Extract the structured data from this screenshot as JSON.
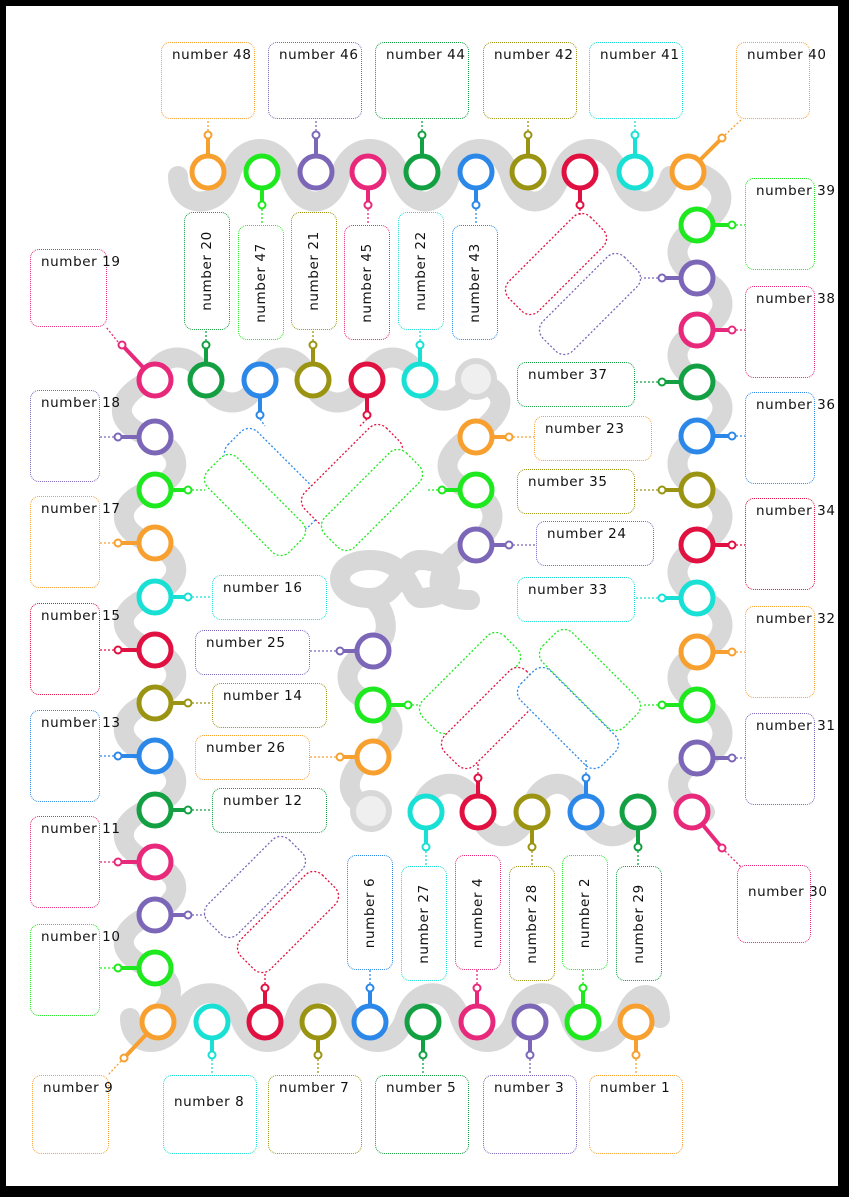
{
  "colors": {
    "orange": "#f7a030",
    "green": "#1ee81e",
    "purple": "#7b66b8",
    "pink": "#e8287a",
    "dkgreen": "#12a042",
    "blue": "#2c88e8",
    "olive": "#9a9412",
    "red": "#e01040",
    "cyan": "#18e0d4",
    "track": "#d8d8d8"
  },
  "labels": {
    "n1": "number 1",
    "n2": "number 2",
    "n3": "number 3",
    "n4": "number 4",
    "n5": "number 5",
    "n6": "number 6",
    "n7": "number 7",
    "n8": "number 8",
    "n9": "number 9",
    "n10": "number 10",
    "n11": "number 11",
    "n12": "number 12",
    "n13": "number 13",
    "n14": "number 14",
    "n15": "number 15",
    "n16": "number 16",
    "n17": "number 17",
    "n18": "number 18",
    "n19": "number 19",
    "n20": "number 20",
    "n21": "number 21",
    "n22": "number 22",
    "n23": "number 23",
    "n24": "number 24",
    "n25": "number 25",
    "n26": "number 26",
    "n27": "number 27",
    "n28": "number 28",
    "n29": "number 29",
    "n30": "number 30",
    "n31": "number 31",
    "n32": "number 32",
    "n33": "number 33",
    "n34": "number 34",
    "n35": "number 35",
    "n36": "number 36",
    "n37": "number 37",
    "n38": "number 38",
    "n39": "number 39",
    "n40": "number 40",
    "n41": "number 41",
    "n42": "number 42",
    "n43": "number 43",
    "n44": "number 44",
    "n45": "number 45",
    "n46": "number 46",
    "n47": "number 47",
    "n48": "number 48"
  }
}
